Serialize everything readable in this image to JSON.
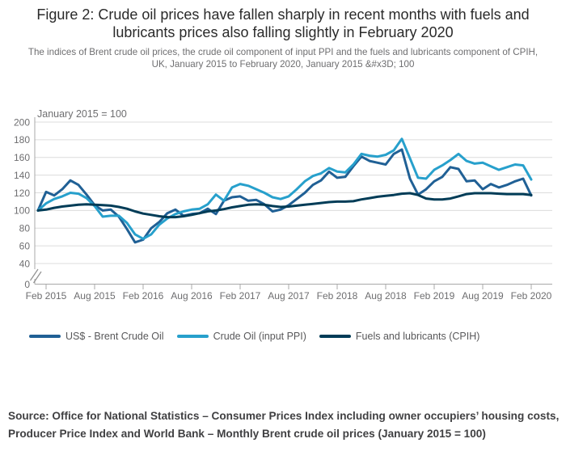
{
  "figure": {
    "title": "Figure 2: Crude oil prices have fallen sharply in recent months with fuels and lubricants prices also falling slightly in February 2020",
    "subtitle": "The indices of Brent crude oil prices, the crude oil component of input PPI and the fuels and lubricants component of CPIH, UK, January 2015 to February 2020, January 2015 &#x3D; 100",
    "source": "Source: Office for National Statistics – Consumer Prices Index including owner  occupiers’ housing costs, Producer Price  Index and World Bank – Monthly Brent crude oil prices (January 2015 = 100)"
  },
  "chart_data": {
    "type": "line",
    "annotation": "January 2015 = 100",
    "x_unit": "month",
    "x_range": [
      "Jan 2015",
      "Feb 2020"
    ],
    "n_points": 62,
    "x_tick_labels": [
      "Feb 2015",
      "Aug 2015",
      "Feb 2016",
      "Aug 2016",
      "Feb 2017",
      "Aug 2017",
      "Feb 2018",
      "Aug 2018",
      "Feb 2019",
      "Aug 2019",
      "Feb 2020"
    ],
    "x_tick_month_indices": [
      1,
      7,
      13,
      19,
      25,
      31,
      37,
      43,
      49,
      55,
      61
    ],
    "yticks": [
      0,
      40,
      60,
      80,
      100,
      120,
      140,
      160,
      180,
      200
    ],
    "ylim": [
      0,
      200
    ],
    "y_axis_break": true,
    "grid": "horizontal",
    "legend_position": "bottom",
    "colors": {
      "grid": "#dcdcdc",
      "axis": "#a8a8a8",
      "tick_text": "#6e6e70"
    },
    "series": [
      {
        "name": "US$ - Brent Crude Oil",
        "color": "#206095",
        "values": [
          100,
          121,
          117,
          124,
          134,
          129,
          118,
          106,
          100,
          101,
          93,
          79,
          64,
          67,
          80,
          87,
          97,
          101,
          94,
          96,
          97,
          102,
          96,
          111,
          115,
          116,
          111,
          112,
          107,
          99,
          101,
          106,
          113,
          120,
          129,
          134,
          144,
          137,
          138,
          150,
          161,
          156,
          154,
          152,
          164,
          169,
          136,
          118,
          124,
          133,
          138,
          149,
          147,
          133,
          134,
          124,
          130,
          126,
          129,
          133,
          136,
          117
        ]
      },
      {
        "name": "Crude Oil (input PPI)",
        "color": "#27a0cc",
        "values": [
          100,
          108,
          113,
          116,
          120,
          119,
          114,
          105,
          93,
          94,
          94,
          86,
          73,
          68,
          73,
          84,
          91,
          96,
          99,
          101,
          102,
          107,
          118,
          111,
          126,
          130,
          128,
          124,
          120,
          115,
          113,
          116,
          124,
          133,
          139,
          142,
          148,
          144,
          143,
          152,
          164,
          162,
          161,
          163,
          168,
          181,
          159,
          137,
          136,
          146,
          151,
          157,
          164,
          156,
          153,
          154,
          150,
          146,
          149,
          152,
          151,
          135
        ]
      },
      {
        "name": "Fuels and lubricants (CPIH)",
        "color": "#003c57",
        "values": [
          100,
          101,
          103,
          104.5,
          105.5,
          106.5,
          107,
          106.5,
          106,
          105.5,
          104,
          102,
          99,
          96.5,
          95,
          93.5,
          92.5,
          92.5,
          93.5,
          95,
          97,
          99,
          100,
          101.5,
          103.5,
          105,
          106.5,
          107,
          106.5,
          105,
          104,
          104.5,
          105.5,
          106.5,
          107.5,
          108.5,
          109.5,
          110,
          110,
          110.5,
          112.5,
          114,
          115.5,
          116.5,
          117.5,
          119,
          119.5,
          117.5,
          113.5,
          112.5,
          112.5,
          113.5,
          116,
          118.5,
          119.5,
          119.5,
          119.5,
          119,
          118.5,
          118.5,
          118.5,
          117.5
        ]
      }
    ]
  }
}
